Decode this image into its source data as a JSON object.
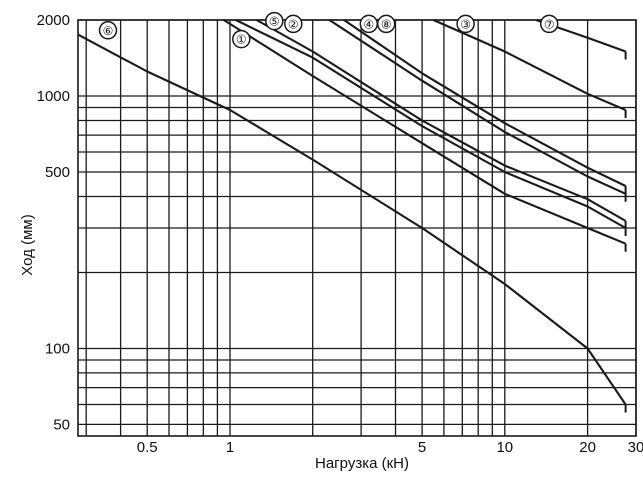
{
  "chart_data": {
    "type": "line",
    "xlabel": "Нагрузка (кН)",
    "ylabel": "Ход (мм)",
    "x_scale": "log",
    "y_scale": "log",
    "xlim": [
      0.28,
      30
    ],
    "ylim": [
      45,
      2000
    ],
    "grid": true,
    "x_tick_labels": [
      {
        "value": 0.5,
        "label": "0.5"
      },
      {
        "value": 1,
        "label": "1"
      },
      {
        "value": 5,
        "label": "5"
      },
      {
        "value": 10,
        "label": "10"
      },
      {
        "value": 20,
        "label": "20"
      },
      {
        "value": 30,
        "label": "30"
      }
    ],
    "y_tick_labels": [
      {
        "value": 2000,
        "label": "2000"
      },
      {
        "value": 1000,
        "label": "1000"
      },
      {
        "value": 500,
        "label": "500"
      },
      {
        "value": 100,
        "label": "100"
      },
      {
        "value": 50,
        "label": "50"
      }
    ],
    "x_gridlines": [
      0.3,
      0.4,
      0.5,
      0.6,
      0.7,
      0.8,
      0.9,
      1,
      2,
      3,
      4,
      5,
      6,
      7,
      8,
      9,
      10,
      20,
      30
    ],
    "y_gridlines": [
      2000,
      1000,
      900,
      800,
      700,
      600,
      500,
      400,
      300,
      200,
      100,
      90,
      80,
      70,
      60,
      50
    ],
    "series": [
      {
        "name": "①",
        "label_at": [
          1.1,
          1680
        ],
        "points": [
          [
            0.95,
            2000
          ],
          [
            2,
            1200
          ],
          [
            5,
            650
          ],
          [
            10,
            410
          ],
          [
            20,
            300
          ],
          [
            27.5,
            260
          ]
        ]
      },
      {
        "name": "②",
        "label_at": [
          1.7,
          1930
        ],
        "points": [
          [
            1.25,
            2000
          ],
          [
            2,
            1500
          ],
          [
            5,
            800
          ],
          [
            10,
            530
          ],
          [
            20,
            390
          ],
          [
            27.5,
            320
          ]
        ]
      },
      {
        "name": "③",
        "label_at": [
          7.2,
          1930
        ],
        "points": [
          [
            5.5,
            2000
          ],
          [
            10,
            1500
          ],
          [
            20,
            1020
          ],
          [
            27.5,
            880
          ]
        ]
      },
      {
        "name": "④",
        "label_at": [
          3.2,
          1930
        ],
        "points": [
          [
            2.3,
            2000
          ],
          [
            5,
            1150
          ],
          [
            10,
            720
          ],
          [
            20,
            480
          ],
          [
            27.5,
            410
          ]
        ]
      },
      {
        "name": "⑤",
        "label_at": [
          1.45,
          1980
        ],
        "points": [
          [
            1.05,
            2000
          ],
          [
            2,
            1420
          ],
          [
            5,
            760
          ],
          [
            10,
            500
          ],
          [
            20,
            365
          ],
          [
            27.5,
            300
          ]
        ]
      },
      {
        "name": "⑥",
        "label_at": [
          0.36,
          1820
        ],
        "points": [
          [
            0.28,
            1750
          ],
          [
            0.5,
            1250
          ],
          [
            1,
            880
          ],
          [
            2,
            560
          ],
          [
            5,
            300
          ],
          [
            10,
            180
          ],
          [
            20,
            100
          ],
          [
            27.5,
            60
          ]
        ]
      },
      {
        "name": "⑦",
        "label_at": [
          14.5,
          1930
        ],
        "points": [
          [
            13,
            2000
          ],
          [
            20,
            1700
          ],
          [
            27.5,
            1500
          ]
        ]
      },
      {
        "name": "⑧",
        "label_at": [
          3.7,
          1930
        ],
        "points": [
          [
            2.6,
            2000
          ],
          [
            5,
            1230
          ],
          [
            10,
            780
          ],
          [
            20,
            520
          ],
          [
            27.5,
            440
          ]
        ]
      }
    ]
  },
  "style": {
    "line_color": "#1a1a1a",
    "grid_color": "#1a1a1a",
    "background": "#ffffff"
  }
}
